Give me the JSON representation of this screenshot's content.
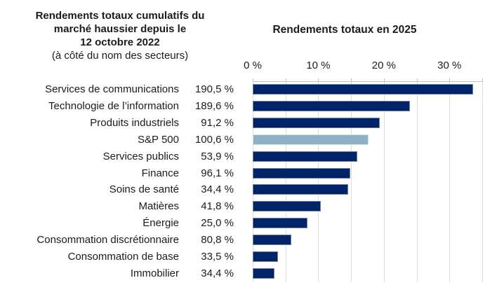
{
  "left_title": {
    "line1": "Rendements totaux cumulatifs du",
    "line2": "marché haussier depuis le",
    "line3": "12 octobre 2022",
    "line4": "(à côté du nom des secteurs)"
  },
  "chart_title": "Rendements totaux en 2025",
  "x_axis": {
    "tick_labels": [
      "0 %",
      "10 %",
      "20 %",
      "30 %"
    ],
    "tick_positions_pct": [
      0,
      10,
      20,
      30
    ],
    "gridline_step_pct": 5,
    "min_pct": 0,
    "max_pct": 35
  },
  "colors": {
    "bar_navy": "#002467",
    "bar_navy_border": "#71859f",
    "bar_highlight": "#8db1c7",
    "bar_highlight_border": "#d6e4e0",
    "gridline": "#dcdcdc",
    "axis_line": "#bfbfbf",
    "text": "#1b1b1b"
  },
  "chart_data": {
    "type": "bar",
    "orientation": "horizontal",
    "title": "Rendements totaux en 2025",
    "xlabel": "",
    "ylabel": "",
    "xlim": [
      0,
      35
    ],
    "grid": true,
    "legend": "none",
    "highlight_index": 3,
    "rows": [
      {
        "sector": "Services de communications",
        "cumulative": "190,5 %",
        "value_2025_pct": 33.6,
        "highlight": false
      },
      {
        "sector": "Technologie de l’information",
        "cumulative": "189,6 %",
        "value_2025_pct": 24.0,
        "highlight": false
      },
      {
        "sector": "Produits industriels",
        "cumulative": "91,2 %",
        "value_2025_pct": 19.4,
        "highlight": false
      },
      {
        "sector": "S&P 500",
        "cumulative": "100,6 %",
        "value_2025_pct": 17.7,
        "highlight": true
      },
      {
        "sector": "Services publics",
        "cumulative": "53,9 %",
        "value_2025_pct": 16.0,
        "highlight": false
      },
      {
        "sector": "Finance",
        "cumulative": "96,1 %",
        "value_2025_pct": 14.9,
        "highlight": false
      },
      {
        "sector": "Soins de santé",
        "cumulative": "34,4 %",
        "value_2025_pct": 14.6,
        "highlight": false
      },
      {
        "sector": "Matières",
        "cumulative": "41,8 %",
        "value_2025_pct": 10.4,
        "highlight": false
      },
      {
        "sector": "Énergie",
        "cumulative": "25,0 %",
        "value_2025_pct": 8.3,
        "highlight": false
      },
      {
        "sector": "Consommation discrétionnaire",
        "cumulative": "80,8 %",
        "value_2025_pct": 5.9,
        "highlight": false
      },
      {
        "sector": "Consommation de base",
        "cumulative": "33,5 %",
        "value_2025_pct": 3.9,
        "highlight": false
      },
      {
        "sector": "Immobilier",
        "cumulative": "34,4 %",
        "value_2025_pct": 3.3,
        "highlight": false
      }
    ]
  }
}
